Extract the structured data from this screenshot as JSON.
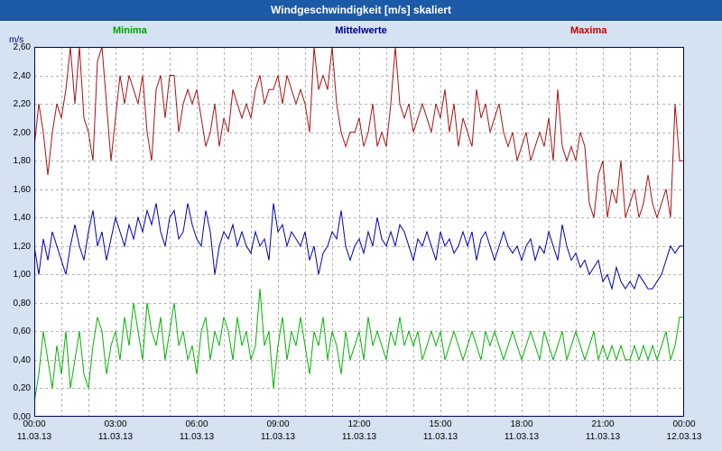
{
  "title_bar": {
    "title": "Windgeschwindigkeit [m/s] skaliert"
  },
  "legend": [
    {
      "label": "Minima",
      "color": "#00a000"
    },
    {
      "label": "Mittelwerte",
      "color": "#000080"
    },
    {
      "label": "Maxima",
      "color": "#c00000"
    }
  ],
  "axis": {
    "unit": "m/s",
    "y_tick_labels": [
      "2,60",
      "2,40",
      "2,20",
      "2,00",
      "1,80",
      "1,60",
      "1,40",
      "1,20",
      "1,00",
      "0,80",
      "0,60",
      "0,40",
      "0,20",
      "0,00"
    ],
    "x_ticks": [
      {
        "time": "00:00",
        "date": "11.03.13"
      },
      {
        "time": "03:00",
        "date": "11.03.13"
      },
      {
        "time": "06:00",
        "date": "11.03.13"
      },
      {
        "time": "09:00",
        "date": "11.03.13"
      },
      {
        "time": "12:00",
        "date": "11.03.13"
      },
      {
        "time": "15:00",
        "date": "11.03.13"
      },
      {
        "time": "18:00",
        "date": "11.03.13"
      },
      {
        "time": "21:00",
        "date": "11.03.13"
      },
      {
        "time": "00:00",
        "date": "12.03.13"
      }
    ]
  },
  "colors": {
    "background": "#d4e2f2",
    "plot_background": "#ffffff",
    "header_bg": "#1b5aa6",
    "header_text": "#ffffff",
    "plot_border": "#000066",
    "grid": "#b4b4b4"
  },
  "chart_data": {
    "type": "line",
    "title": "Windgeschwindigkeit [m/s] skaliert",
    "xlabel": "",
    "ylabel": "m/s",
    "x_unit": "hours",
    "x_range": [
      0,
      24
    ],
    "ylim": [
      0,
      2.6
    ],
    "y_tick_step": 0.2,
    "grid": "dashed",
    "legend_position": "top",
    "series": [
      {
        "name": "Maxima",
        "color": "#aa1111",
        "values": [
          1.9,
          2.2,
          2.0,
          1.7,
          2.0,
          2.2,
          2.1,
          2.3,
          2.6,
          2.2,
          2.6,
          2.1,
          2.0,
          1.8,
          2.5,
          2.6,
          2.2,
          1.8,
          2.1,
          2.4,
          2.2,
          2.4,
          2.3,
          2.2,
          2.4,
          2.0,
          1.8,
          2.3,
          2.4,
          2.1,
          2.4,
          2.4,
          2.0,
          2.2,
          2.3,
          2.2,
          2.3,
          2.1,
          1.9,
          2.0,
          2.2,
          1.9,
          2.1,
          2.0,
          2.3,
          2.2,
          2.1,
          2.2,
          2.1,
          2.3,
          2.4,
          2.2,
          2.3,
          2.3,
          2.4,
          2.2,
          2.4,
          2.3,
          2.2,
          2.3,
          2.2,
          2.0,
          2.6,
          2.3,
          2.4,
          2.3,
          2.6,
          2.2,
          2.0,
          1.9,
          2.0,
          2.0,
          2.1,
          1.9,
          2.0,
          2.2,
          1.9,
          2.0,
          1.9,
          2.2,
          2.6,
          2.2,
          2.1,
          2.2,
          2.0,
          2.1,
          2.2,
          2.1,
          2.0,
          2.2,
          2.1,
          2.3,
          2.0,
          2.2,
          1.9,
          2.1,
          2.0,
          1.9,
          2.3,
          2.1,
          2.2,
          2.0,
          2.1,
          2.2,
          2.0,
          1.9,
          2.0,
          1.8,
          1.9,
          2.0,
          1.8,
          1.9,
          2.0,
          1.9,
          2.1,
          1.8,
          2.3,
          1.9,
          1.8,
          1.9,
          1.8,
          2.0,
          1.9,
          1.5,
          1.4,
          1.7,
          1.8,
          1.4,
          1.6,
          1.5,
          1.8,
          1.4,
          1.5,
          1.6,
          1.4,
          1.5,
          1.7,
          1.5,
          1.4,
          1.5,
          1.6,
          1.4,
          2.2,
          1.8,
          1.8
        ]
      },
      {
        "name": "Mittelwerte",
        "color": "#0000b4",
        "values": [
          1.2,
          1.0,
          1.25,
          1.1,
          1.3,
          1.2,
          1.1,
          1.0,
          1.2,
          1.35,
          1.2,
          1.1,
          1.3,
          1.45,
          1.2,
          1.3,
          1.1,
          1.25,
          1.4,
          1.3,
          1.2,
          1.35,
          1.25,
          1.4,
          1.3,
          1.45,
          1.35,
          1.5,
          1.3,
          1.2,
          1.4,
          1.45,
          1.25,
          1.3,
          1.5,
          1.35,
          1.25,
          1.2,
          1.45,
          1.3,
          1.0,
          1.2,
          1.3,
          1.25,
          1.35,
          1.2,
          1.3,
          1.2,
          1.15,
          1.3,
          1.2,
          1.25,
          1.1,
          1.5,
          1.3,
          1.35,
          1.2,
          1.3,
          1.25,
          1.2,
          1.3,
          1.1,
          1.2,
          1.0,
          1.15,
          1.2,
          1.3,
          1.25,
          1.45,
          1.2,
          1.1,
          1.2,
          1.25,
          1.15,
          1.3,
          1.2,
          1.4,
          1.25,
          1.2,
          1.3,
          1.2,
          1.35,
          1.3,
          1.2,
          1.1,
          1.25,
          1.2,
          1.3,
          1.2,
          1.1,
          1.3,
          1.2,
          1.25,
          1.15,
          1.2,
          1.3,
          1.2,
          1.3,
          1.1,
          1.25,
          1.3,
          1.2,
          1.1,
          1.2,
          1.3,
          1.2,
          1.15,
          1.2,
          1.1,
          1.2,
          1.25,
          1.1,
          1.2,
          1.15,
          1.3,
          1.2,
          1.1,
          1.35,
          1.2,
          1.1,
          1.15,
          1.05,
          1.1,
          1.0,
          1.05,
          1.1,
          0.95,
          1.0,
          0.9,
          1.05,
          0.95,
          0.9,
          0.95,
          0.9,
          1.0,
          0.95,
          0.9,
          0.9,
          0.95,
          1.0,
          1.1,
          1.2,
          1.15,
          1.2,
          1.2
        ]
      },
      {
        "name": "Minima",
        "color": "#00b400",
        "values": [
          0.1,
          0.3,
          0.6,
          0.4,
          0.2,
          0.5,
          0.3,
          0.6,
          0.2,
          0.4,
          0.6,
          0.3,
          0.2,
          0.5,
          0.7,
          0.6,
          0.3,
          0.5,
          0.6,
          0.4,
          0.7,
          0.5,
          0.8,
          0.6,
          0.4,
          0.8,
          0.6,
          0.5,
          0.7,
          0.4,
          0.6,
          0.8,
          0.5,
          0.6,
          0.4,
          0.5,
          0.3,
          0.6,
          0.7,
          0.4,
          0.6,
          0.5,
          0.7,
          0.6,
          0.4,
          0.7,
          0.5,
          0.6,
          0.4,
          0.5,
          0.9,
          0.5,
          0.6,
          0.2,
          0.5,
          0.7,
          0.4,
          0.6,
          0.5,
          0.7,
          0.5,
          0.3,
          0.6,
          0.5,
          0.7,
          0.4,
          0.6,
          0.5,
          0.3,
          0.6,
          0.4,
          0.5,
          0.6,
          0.4,
          0.7,
          0.5,
          0.6,
          0.5,
          0.4,
          0.6,
          0.5,
          0.7,
          0.5,
          0.6,
          0.5,
          0.6,
          0.4,
          0.5,
          0.6,
          0.5,
          0.6,
          0.4,
          0.5,
          0.6,
          0.5,
          0.4,
          0.5,
          0.6,
          0.5,
          0.4,
          0.6,
          0.5,
          0.6,
          0.5,
          0.4,
          0.5,
          0.6,
          0.5,
          0.4,
          0.5,
          0.6,
          0.5,
          0.4,
          0.6,
          0.5,
          0.4,
          0.5,
          0.6,
          0.4,
          0.5,
          0.6,
          0.5,
          0.4,
          0.5,
          0.6,
          0.4,
          0.5,
          0.4,
          0.5,
          0.4,
          0.5,
          0.4,
          0.4,
          0.5,
          0.4,
          0.5,
          0.4,
          0.5,
          0.4,
          0.5,
          0.6,
          0.4,
          0.5,
          0.7,
          0.7
        ]
      }
    ]
  }
}
